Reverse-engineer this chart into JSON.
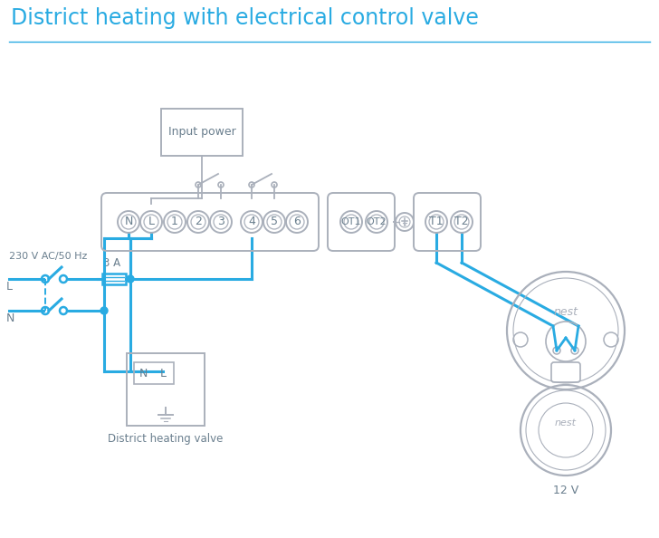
{
  "title": "District heating with electrical control valve",
  "title_color": "#29abe2",
  "title_fontsize": 17,
  "bg_color": "#ffffff",
  "line_color": "#29abe2",
  "component_color": "#aab0bb",
  "text_color": "#6a7f8e",
  "terminal_main": [
    "N",
    "L",
    "1",
    "2",
    "3",
    "4",
    "5",
    "6"
  ],
  "terminal_ot": [
    "OT1",
    "OT2"
  ],
  "terminal_t": [
    "T1",
    "T2"
  ],
  "label_230": "230 V AC/50 Hz",
  "label_L": "L",
  "label_N": "N",
  "label_3A": "3 A",
  "label_district": "District heating valve",
  "label_12V": "12 V",
  "label_input_power": "Input power",
  "label_nest": "nest"
}
